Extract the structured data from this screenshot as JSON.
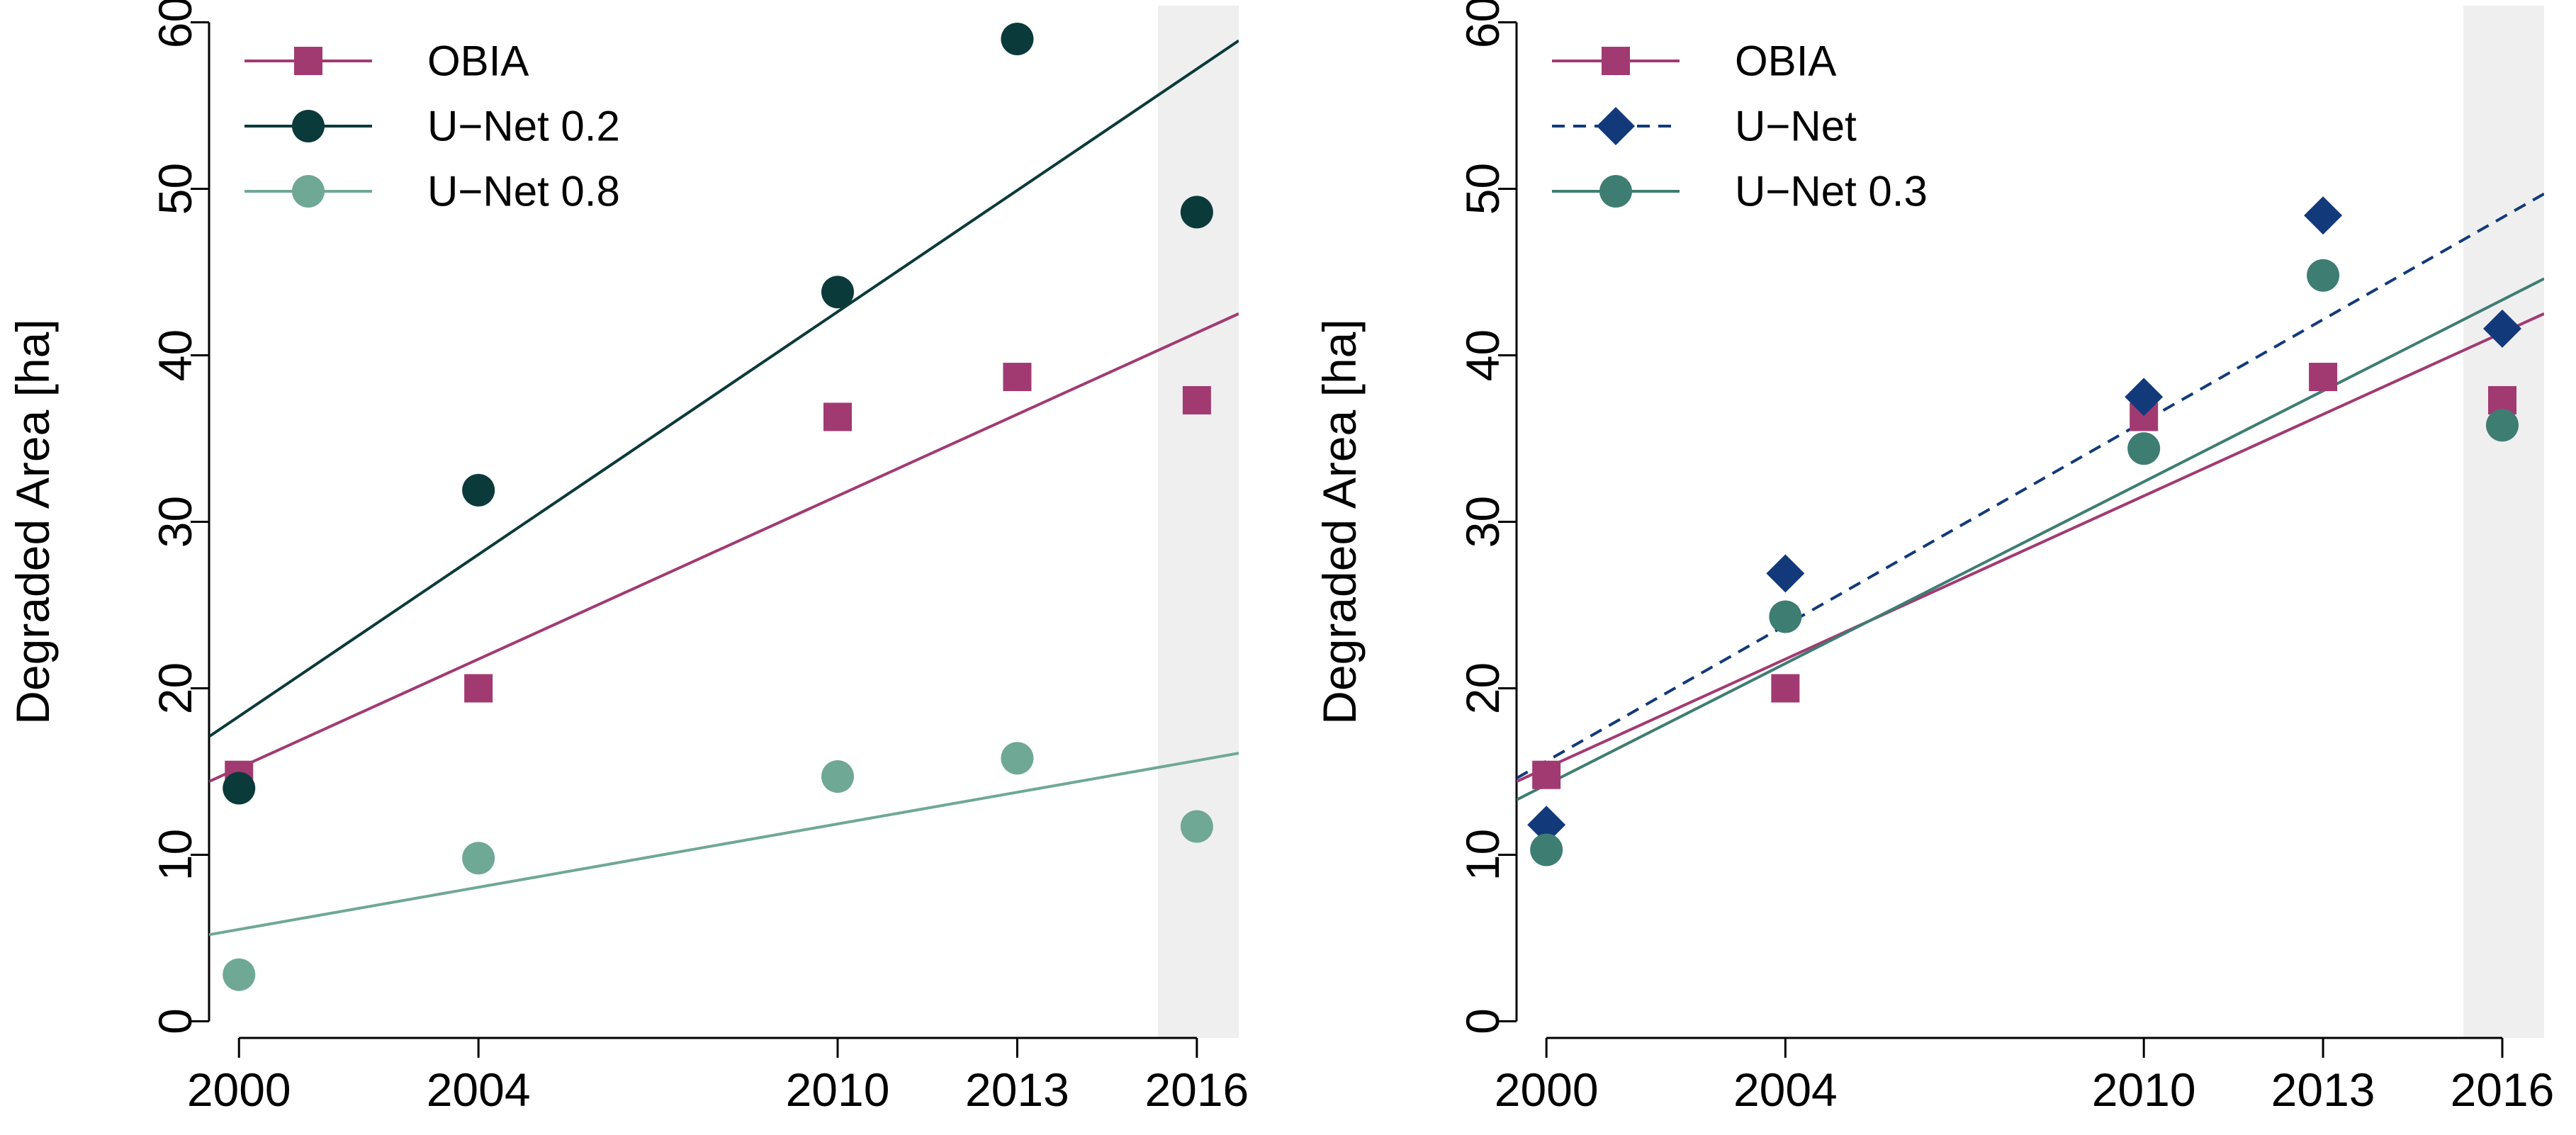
{
  "chart_data": [
    {
      "type": "scatter",
      "ylabel": "Degraded Area [ha]",
      "xticks": [
        2000,
        2004,
        2010,
        2013,
        2016
      ],
      "yticks": [
        0,
        10,
        20,
        30,
        40,
        50,
        60
      ],
      "xlim": [
        1999.5,
        2016.7
      ],
      "ylim": [
        -1,
        61
      ],
      "highlight_band": [
        2015.35,
        2016.7
      ],
      "legend_position": "top-left",
      "series": [
        {
          "name": "OBIA",
          "marker": "square",
          "color": "#A23A72",
          "line_style": "solid",
          "x": [
            2000,
            2004,
            2010,
            2013,
            2016
          ],
          "y": [
            14.8,
            20.0,
            36.3,
            38.7,
            37.3
          ],
          "trend": [
            [
              1999.5,
              14.4
            ],
            [
              2016.7,
              42.5
            ]
          ]
        },
        {
          "name": "U−Net 0.2",
          "marker": "circle",
          "color": "#0B3A3A",
          "line_style": "solid",
          "x": [
            2000,
            2004,
            2010,
            2013,
            2016
          ],
          "y": [
            14.0,
            31.9,
            43.8,
            59.0,
            48.6
          ],
          "trend": [
            [
              1999.5,
              17.1
            ],
            [
              2016.7,
              58.9
            ]
          ]
        },
        {
          "name": "U−Net 0.8",
          "marker": "circle",
          "color": "#6FA895",
          "line_style": "solid",
          "x": [
            2000,
            2004,
            2010,
            2013,
            2016
          ],
          "y": [
            2.8,
            9.8,
            14.7,
            15.8,
            11.7
          ],
          "trend": [
            [
              1999.5,
              5.2
            ],
            [
              2016.7,
              16.1
            ]
          ]
        }
      ]
    },
    {
      "type": "scatter",
      "ylabel": "Degraded Area [ha]",
      "xticks": [
        2000,
        2004,
        2010,
        2013,
        2016
      ],
      "yticks": [
        0,
        10,
        20,
        30,
        40,
        50,
        60
      ],
      "xlim": [
        1999.5,
        2016.7
      ],
      "ylim": [
        -1,
        61
      ],
      "highlight_band": [
        2015.35,
        2016.7
      ],
      "legend_position": "top-left",
      "series": [
        {
          "name": "OBIA",
          "marker": "square",
          "color": "#A23A72",
          "line_style": "solid",
          "x": [
            2000,
            2004,
            2010,
            2013,
            2016
          ],
          "y": [
            14.8,
            20.0,
            36.3,
            38.7,
            37.3
          ],
          "trend": [
            [
              1999.5,
              14.4
            ],
            [
              2016.7,
              42.5
            ]
          ]
        },
        {
          "name": "U−Net",
          "marker": "diamond",
          "color": "#123A7A",
          "line_style": "dashed",
          "x": [
            2000,
            2004,
            2010,
            2013,
            2016
          ],
          "y": [
            11.8,
            26.9,
            37.5,
            48.4,
            41.6
          ],
          "trend": [
            [
              1999.5,
              14.6
            ],
            [
              2016.7,
              49.7
            ]
          ]
        },
        {
          "name": "U−Net 0.3",
          "marker": "circle",
          "color": "#3E7D72",
          "line_style": "solid",
          "x": [
            2000,
            2004,
            2010,
            2013,
            2016
          ],
          "y": [
            10.3,
            24.3,
            34.4,
            44.8,
            35.8
          ],
          "trend": [
            [
              1999.5,
              13.3
            ],
            [
              2016.7,
              44.6
            ]
          ]
        }
      ]
    }
  ]
}
